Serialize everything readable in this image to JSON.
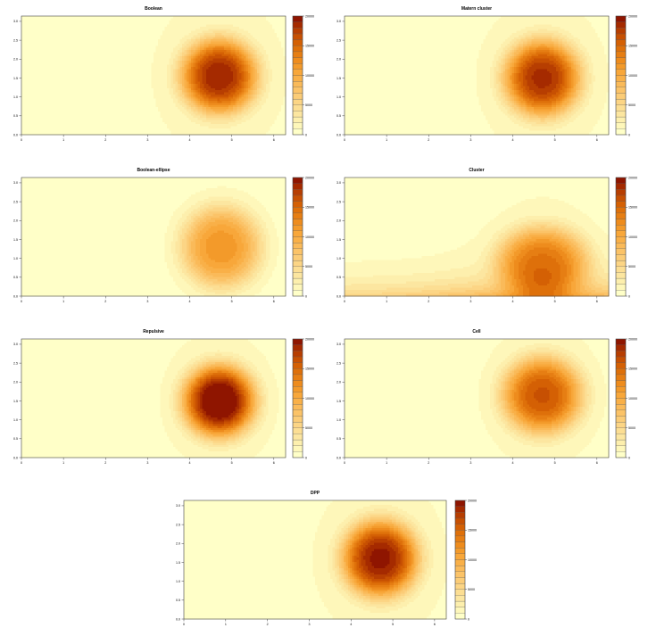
{
  "chart_data": [
    {
      "type": "heatmap",
      "title": "Boolean",
      "xlim": [
        0,
        6.28
      ],
      "ylim": [
        0,
        3.14
      ],
      "xticks": [
        "0",
        "1",
        "2",
        "3",
        "4",
        "5",
        "6"
      ],
      "yticks": [
        "0.0",
        "0.5",
        "1.0",
        "1.5",
        "2.0",
        "2.5",
        "3.0"
      ],
      "colorbar": {
        "min": 0,
        "max": 20000,
        "levels": 20,
        "ticks": [
          "0",
          "5000",
          "10000",
          "15000",
          "20000"
        ]
      },
      "peak": {
        "x": 4.7,
        "y": 1.55,
        "value": 17000,
        "sx": 0.72,
        "sy": 0.78
      },
      "base": 300
    },
    {
      "type": "heatmap",
      "title": "Matern cluster",
      "xlim": [
        0,
        6.28
      ],
      "ylim": [
        0,
        3.14
      ],
      "xticks": [
        "0",
        "1",
        "2",
        "3",
        "4",
        "5",
        "6"
      ],
      "yticks": [
        "0.0",
        "0.5",
        "1.0",
        "1.5",
        "2.0",
        "2.5",
        "3.0"
      ],
      "colorbar": {
        "min": 0,
        "max": 20000,
        "levels": 20,
        "ticks": [
          "0",
          "5000",
          "10000",
          "15000",
          "20000"
        ]
      },
      "peak": {
        "x": 4.7,
        "y": 1.5,
        "value": 16500,
        "sx": 0.72,
        "sy": 0.8
      },
      "base": 300
    },
    {
      "type": "heatmap",
      "title": "Boolean-ellipse",
      "xlim": [
        0,
        6.28
      ],
      "ylim": [
        0,
        3.14
      ],
      "xticks": [
        "0",
        "1",
        "2",
        "3",
        "4",
        "5",
        "6"
      ],
      "yticks": [
        "0.0",
        "0.5",
        "1.0",
        "1.5",
        "2.0",
        "2.5",
        "3.0"
      ],
      "colorbar": {
        "min": 0,
        "max": 20000,
        "levels": 20,
        "ticks": [
          "0",
          "5000",
          "10000",
          "15000",
          "20000"
        ]
      },
      "peak": {
        "x": 4.75,
        "y": 1.3,
        "value": 10500,
        "sx": 0.75,
        "sy": 0.85
      },
      "base": 200
    },
    {
      "type": "heatmap",
      "title": "Cluster",
      "xlim": [
        0,
        6.28
      ],
      "ylim": [
        0,
        3.14
      ],
      "xticks": [
        "0",
        "1",
        "2",
        "3",
        "4",
        "5",
        "6"
      ],
      "yticks": [
        "0.0",
        "0.5",
        "1.0",
        "1.5",
        "2.0",
        "2.5",
        "3.0"
      ],
      "colorbar": {
        "min": 0,
        "max": 20000,
        "levels": 20,
        "ticks": [
          "0",
          "5000",
          "10000",
          "15000",
          "20000"
        ]
      },
      "peak": {
        "x": 4.7,
        "y": 0.9,
        "value": 12000,
        "sx": 0.85,
        "sy": 0.75
      },
      "base": 300,
      "floor": {
        "value": 8500,
        "decay": 0.45
      }
    },
    {
      "type": "heatmap",
      "title": "Repulsive",
      "xlim": [
        0,
        6.28
      ],
      "ylim": [
        0,
        3.14
      ],
      "xticks": [
        "0",
        "1",
        "2",
        "3",
        "4",
        "5",
        "6"
      ],
      "yticks": [
        "0.0",
        "0.5",
        "1.0",
        "1.5",
        "2.0",
        "2.5",
        "3.0"
      ],
      "colorbar": {
        "min": 0,
        "max": 20000,
        "levels": 20,
        "ticks": [
          "0",
          "5000",
          "10000",
          "15000",
          "20000"
        ]
      },
      "peak": {
        "x": 4.7,
        "y": 1.5,
        "value": 19500,
        "sx": 0.68,
        "sy": 0.75
      },
      "base": 0
    },
    {
      "type": "heatmap",
      "title": "Cell",
      "xlim": [
        0,
        6.28
      ],
      "ylim": [
        0,
        3.14
      ],
      "xticks": [
        "0",
        "1",
        "2",
        "3",
        "4",
        "5",
        "6"
      ],
      "yticks": [
        "0.0",
        "0.5",
        "1.0",
        "1.5",
        "2.0",
        "2.5",
        "3.0"
      ],
      "colorbar": {
        "min": 0,
        "max": 20000,
        "levels": 20,
        "ticks": [
          "0",
          "5000",
          "10000",
          "15000",
          "20000"
        ]
      },
      "peak": {
        "x": 4.7,
        "y": 1.65,
        "value": 14500,
        "sx": 0.75,
        "sy": 0.8
      },
      "base": 300
    },
    {
      "type": "heatmap",
      "title": "DPP",
      "xlim": [
        0,
        6.28
      ],
      "ylim": [
        0,
        3.14
      ],
      "xticks": [
        "0",
        "1",
        "2",
        "3",
        "4",
        "5",
        "6"
      ],
      "yticks": [
        "0.0",
        "0.5",
        "1.0",
        "1.5",
        "2.0",
        "2.5",
        "3.0"
      ],
      "colorbar": {
        "min": 0,
        "max": 20000,
        "levels": 20,
        "ticks": [
          "0",
          "5000",
          "10000",
          "15000",
          "20000"
        ]
      },
      "peak": {
        "x": 4.7,
        "y": 1.6,
        "value": 17500,
        "sx": 0.72,
        "sy": 0.8
      },
      "base": 300
    }
  ],
  "palette": [
    "#FFFFC8",
    "#FEF7BA",
    "#FDEFAD",
    "#FCE6A0",
    "#FCDE93",
    "#FCD585",
    "#FBCC77",
    "#FBC368",
    "#FABA59",
    "#F9B048",
    "#F8A73A",
    "#F39A2A",
    "#EE8C1D",
    "#E67E13",
    "#DE700A",
    "#D46004",
    "#C75002",
    "#B73E01",
    "#A52A00",
    "#8F1500"
  ]
}
